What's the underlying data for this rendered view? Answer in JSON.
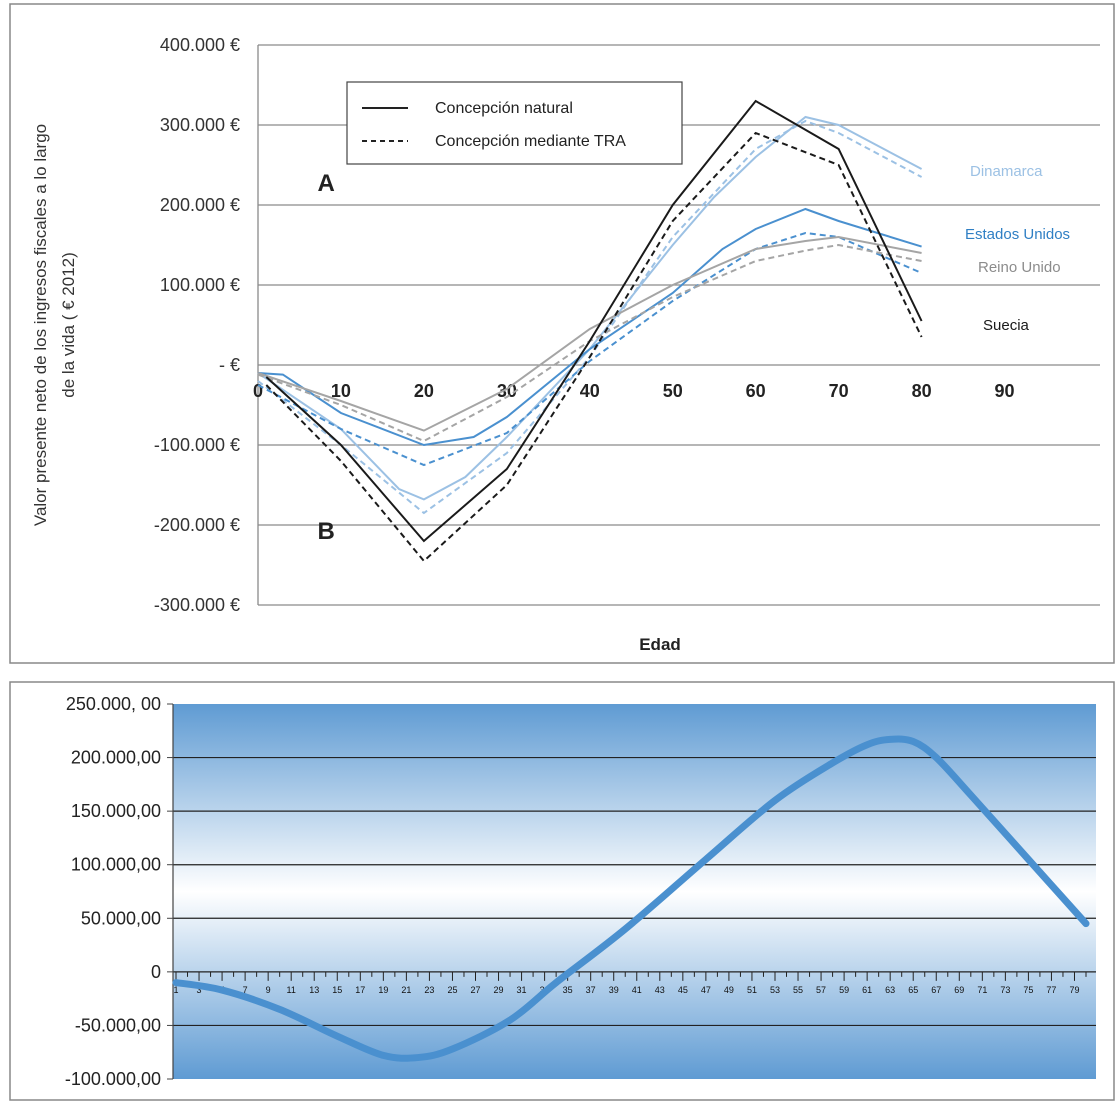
{
  "chart_data": [
    {
      "type": "line",
      "xlabel": "Edad",
      "ylabel_line1": "Valor presente neto de los ingresos fiscales a lo largo",
      "ylabel_line2": "de  la vida ( € 2012)",
      "xlim": [
        0,
        95
      ],
      "ylim": [
        -300000,
        400000
      ],
      "x_ticks": [
        "0",
        "10",
        "20",
        "30",
        "40",
        "50",
        "60",
        "70",
        "80",
        "90"
      ],
      "y_ticks": [
        "400.000 €",
        "300.000 €",
        "200.000 €",
        "100.000 €",
        "- €",
        "-100.000 €",
        "-200.000 €",
        "-300.000 €"
      ],
      "y_tick_values": [
        400000,
        300000,
        200000,
        100000,
        0,
        -100000,
        -200000,
        -300000
      ],
      "legend": {
        "placement": "top-left",
        "items": [
          {
            "label": "Concepción natural",
            "style": "solid"
          },
          {
            "label": "Concepción mediante TRA",
            "style": "dashed"
          }
        ]
      },
      "annotations": [
        {
          "text": "A",
          "x": 5,
          "y": 230000
        },
        {
          "text": "B",
          "x": 5,
          "y": -205000
        }
      ],
      "series": [
        {
          "name": "Dinamarca",
          "color": "#9cc1e4",
          "style": "solid",
          "x": [
            0,
            10,
            17,
            20,
            25,
            30,
            40,
            50,
            55,
            60,
            66,
            70,
            80
          ],
          "y": [
            -10000,
            -80000,
            -155000,
            -168000,
            -140000,
            -90000,
            20000,
            150000,
            210000,
            260000,
            310000,
            300000,
            245000
          ]
        },
        {
          "name": "Dinamarca",
          "color": "#9cc1e4",
          "style": "dashed",
          "x": [
            0,
            10,
            20,
            30,
            40,
            50,
            60,
            66,
            70,
            80
          ],
          "y": [
            -20000,
            -100000,
            -185000,
            -110000,
            10000,
            160000,
            270000,
            305000,
            290000,
            235000
          ]
        },
        {
          "name": "Estados Unidos",
          "color": "#4a90cf",
          "style": "solid",
          "x": [
            0,
            3,
            10,
            20,
            26,
            30,
            40,
            50,
            56,
            60,
            66,
            70,
            80
          ],
          "y": [
            -10000,
            -12000,
            -60000,
            -100000,
            -90000,
            -65000,
            20000,
            90000,
            145000,
            170000,
            195000,
            180000,
            148000
          ]
        },
        {
          "name": "Estados Unidos",
          "color": "#4a90cf",
          "style": "dashed",
          "x": [
            0,
            10,
            20,
            30,
            40,
            50,
            60,
            66,
            70,
            80
          ],
          "y": [
            -25000,
            -80000,
            -125000,
            -85000,
            5000,
            80000,
            145000,
            165000,
            160000,
            115000
          ]
        },
        {
          "name": "Reino Unido",
          "color": "#a5a5a5",
          "style": "solid",
          "x": [
            0,
            10,
            20,
            30,
            40,
            50,
            60,
            66,
            70,
            80
          ],
          "y": [
            -10000,
            -45000,
            -82000,
            -30000,
            45000,
            100000,
            145000,
            155000,
            160000,
            140000
          ]
        },
        {
          "name": "Reino Unido",
          "color": "#a5a5a5",
          "style": "dashed",
          "x": [
            0,
            10,
            20,
            30,
            40,
            50,
            60,
            66,
            70,
            80
          ],
          "y": [
            -12000,
            -50000,
            -95000,
            -40000,
            30000,
            85000,
            130000,
            143000,
            150000,
            130000
          ]
        },
        {
          "name": "Suecia",
          "color": "#1a1a1a",
          "style": "solid",
          "x": [
            1,
            10,
            20,
            30,
            40,
            50,
            60,
            70,
            80
          ],
          "y": [
            -15000,
            -100000,
            -220000,
            -130000,
            30000,
            200000,
            330000,
            270000,
            55000
          ]
        },
        {
          "name": "Suecia",
          "color": "#1a1a1a",
          "style": "dashed",
          "x": [
            1,
            10,
            20,
            30,
            40,
            50,
            60,
            70,
            80
          ],
          "y": [
            -25000,
            -120000,
            -245000,
            -150000,
            10000,
            180000,
            290000,
            250000,
            35000
          ]
        }
      ],
      "series_labels": [
        {
          "text": "Dinamarca",
          "color": "#9cc1e4"
        },
        {
          "text": "Estados Unidos",
          "color": "#2f7fc4"
        },
        {
          "text": "Reino Unido",
          "color": "#8c8c8c"
        },
        {
          "text": "Suecia",
          "color": "#1a1a1a"
        }
      ]
    },
    {
      "type": "line",
      "ylim": [
        -100000,
        250000
      ],
      "y_ticks": [
        "250.000, 00",
        "200.000,00",
        "150.000,00",
        "100.000,00",
        "50.000,00",
        "0",
        "-50.000,00",
        "-100.000,00"
      ],
      "y_tick_values": [
        250000,
        200000,
        150000,
        100000,
        50000,
        0,
        -50000,
        -100000
      ],
      "x_ticks": [
        "1",
        "3",
        "5",
        "7",
        "9",
        "11",
        "13",
        "15",
        "17",
        "19",
        "21",
        "23",
        "25",
        "27",
        "29",
        "31",
        "33",
        "35",
        "37",
        "39",
        "41",
        "43",
        "45",
        "47",
        "49",
        "51",
        "53",
        "55",
        "57",
        "59",
        "61",
        "63",
        "65",
        "67",
        "69",
        "71",
        "73",
        "75",
        "77",
        "79"
      ],
      "xlim": [
        1,
        80
      ],
      "grid": true,
      "series": [
        {
          "color": "#4a90cf",
          "x": [
            1,
            5,
            10,
            15,
            19,
            22,
            25,
            30,
            34,
            40,
            47,
            53,
            58,
            61,
            63,
            65,
            67,
            70,
            75,
            80
          ],
          "y": [
            -10000,
            -17000,
            -35000,
            -60000,
            -78000,
            -80000,
            -72000,
            -45000,
            -10000,
            40000,
            105000,
            160000,
            195000,
            212000,
            217000,
            215000,
            200000,
            165000,
            105000,
            45000
          ]
        }
      ]
    }
  ]
}
